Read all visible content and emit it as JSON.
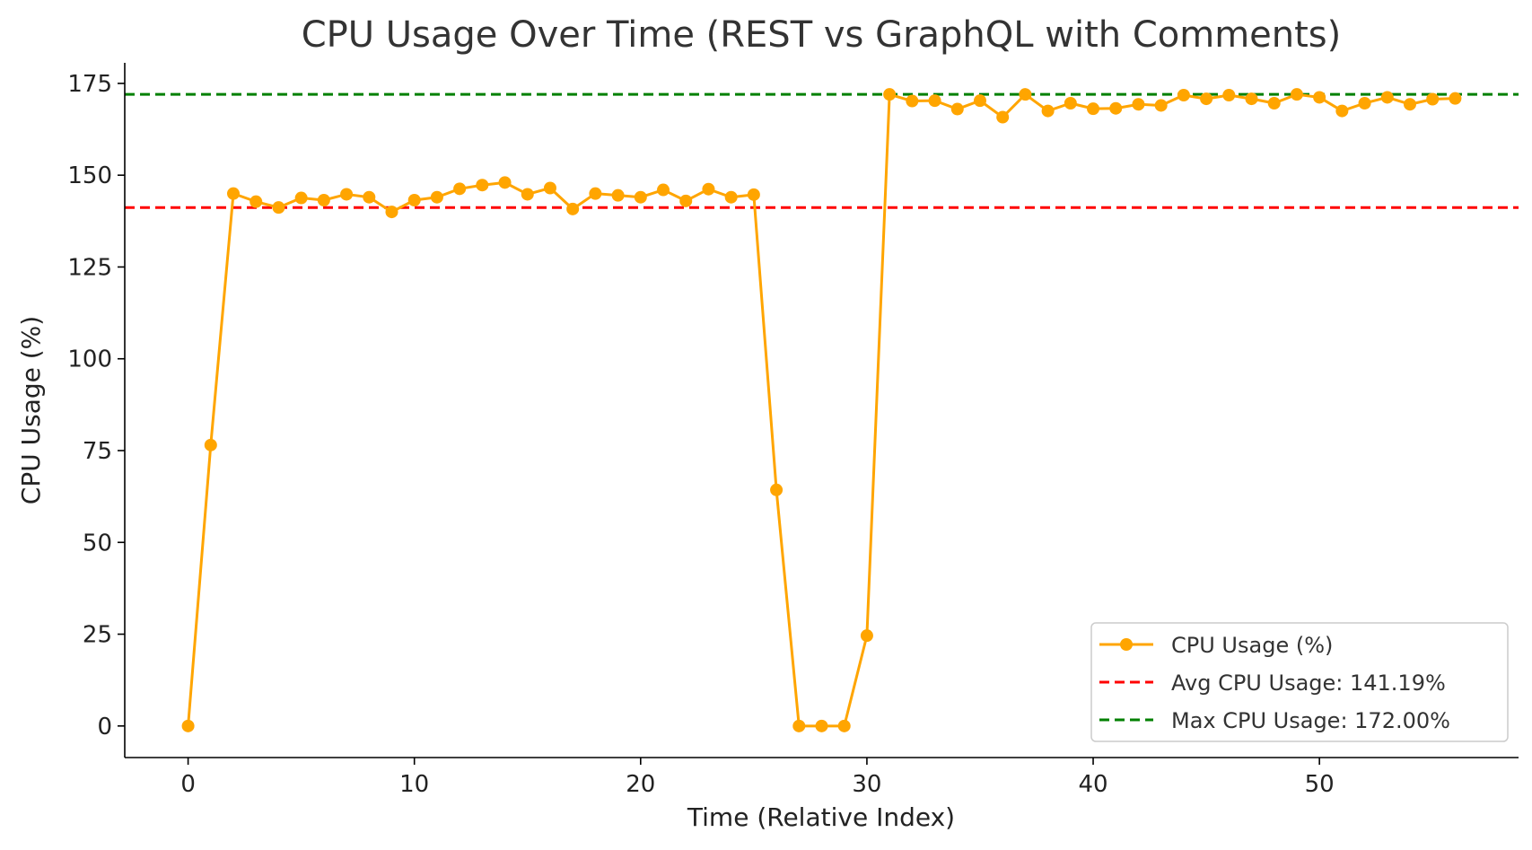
{
  "chart_data": {
    "type": "line",
    "title": "CPU Usage Over Time (REST vs GraphQL with Comments)",
    "xlabel": "Time (Relative Index)",
    "ylabel": "CPU Usage (%)",
    "xlim": [
      -2.8,
      58.8
    ],
    "ylim": [
      -8.6,
      180.6
    ],
    "xticks": [
      0,
      10,
      20,
      30,
      40,
      50
    ],
    "yticks": [
      0,
      25,
      50,
      75,
      100,
      125,
      150,
      175
    ],
    "grid": false,
    "legend_position": "bottom-right",
    "series": [
      {
        "name": "CPU Usage (%)",
        "color": "#FFA500",
        "marker": "circle",
        "x": [
          0,
          1,
          2,
          3,
          4,
          5,
          6,
          7,
          8,
          9,
          10,
          11,
          12,
          13,
          14,
          15,
          16,
          17,
          18,
          19,
          20,
          21,
          22,
          23,
          24,
          25,
          26,
          27,
          28,
          29,
          30,
          31,
          32,
          33,
          34,
          35,
          36,
          37,
          38,
          39,
          40,
          41,
          42,
          43,
          44,
          45,
          46,
          47,
          48,
          49,
          50,
          51,
          52,
          53,
          54,
          55,
          56
        ],
        "values": [
          0,
          76.5,
          145,
          142.8,
          141.2,
          143.8,
          143.2,
          144.8,
          144,
          140,
          143.2,
          144,
          146.3,
          147.3,
          148,
          144.8,
          146.5,
          140.8,
          145,
          144.5,
          144,
          146,
          143,
          146.2,
          144,
          144.7,
          64.3,
          0,
          0,
          0,
          24.6,
          172,
          170.2,
          170.3,
          168,
          170.3,
          165.8,
          172,
          167.5,
          169.6,
          168.1,
          168.2,
          169.3,
          169,
          171.8,
          170.8,
          171.8,
          170.8,
          169.6,
          172,
          171.2,
          167.5,
          169.6,
          171.2,
          169.3,
          170.7,
          170.9
        ]
      }
    ],
    "reference_lines": [
      {
        "name": "Avg CPU Usage: 141.19%",
        "y": 141.19,
        "color": "#FF0000",
        "style": "dashed"
      },
      {
        "name": "Max CPU Usage: 172.00%",
        "y": 172.0,
        "color": "#008000",
        "style": "dashed"
      }
    ]
  }
}
